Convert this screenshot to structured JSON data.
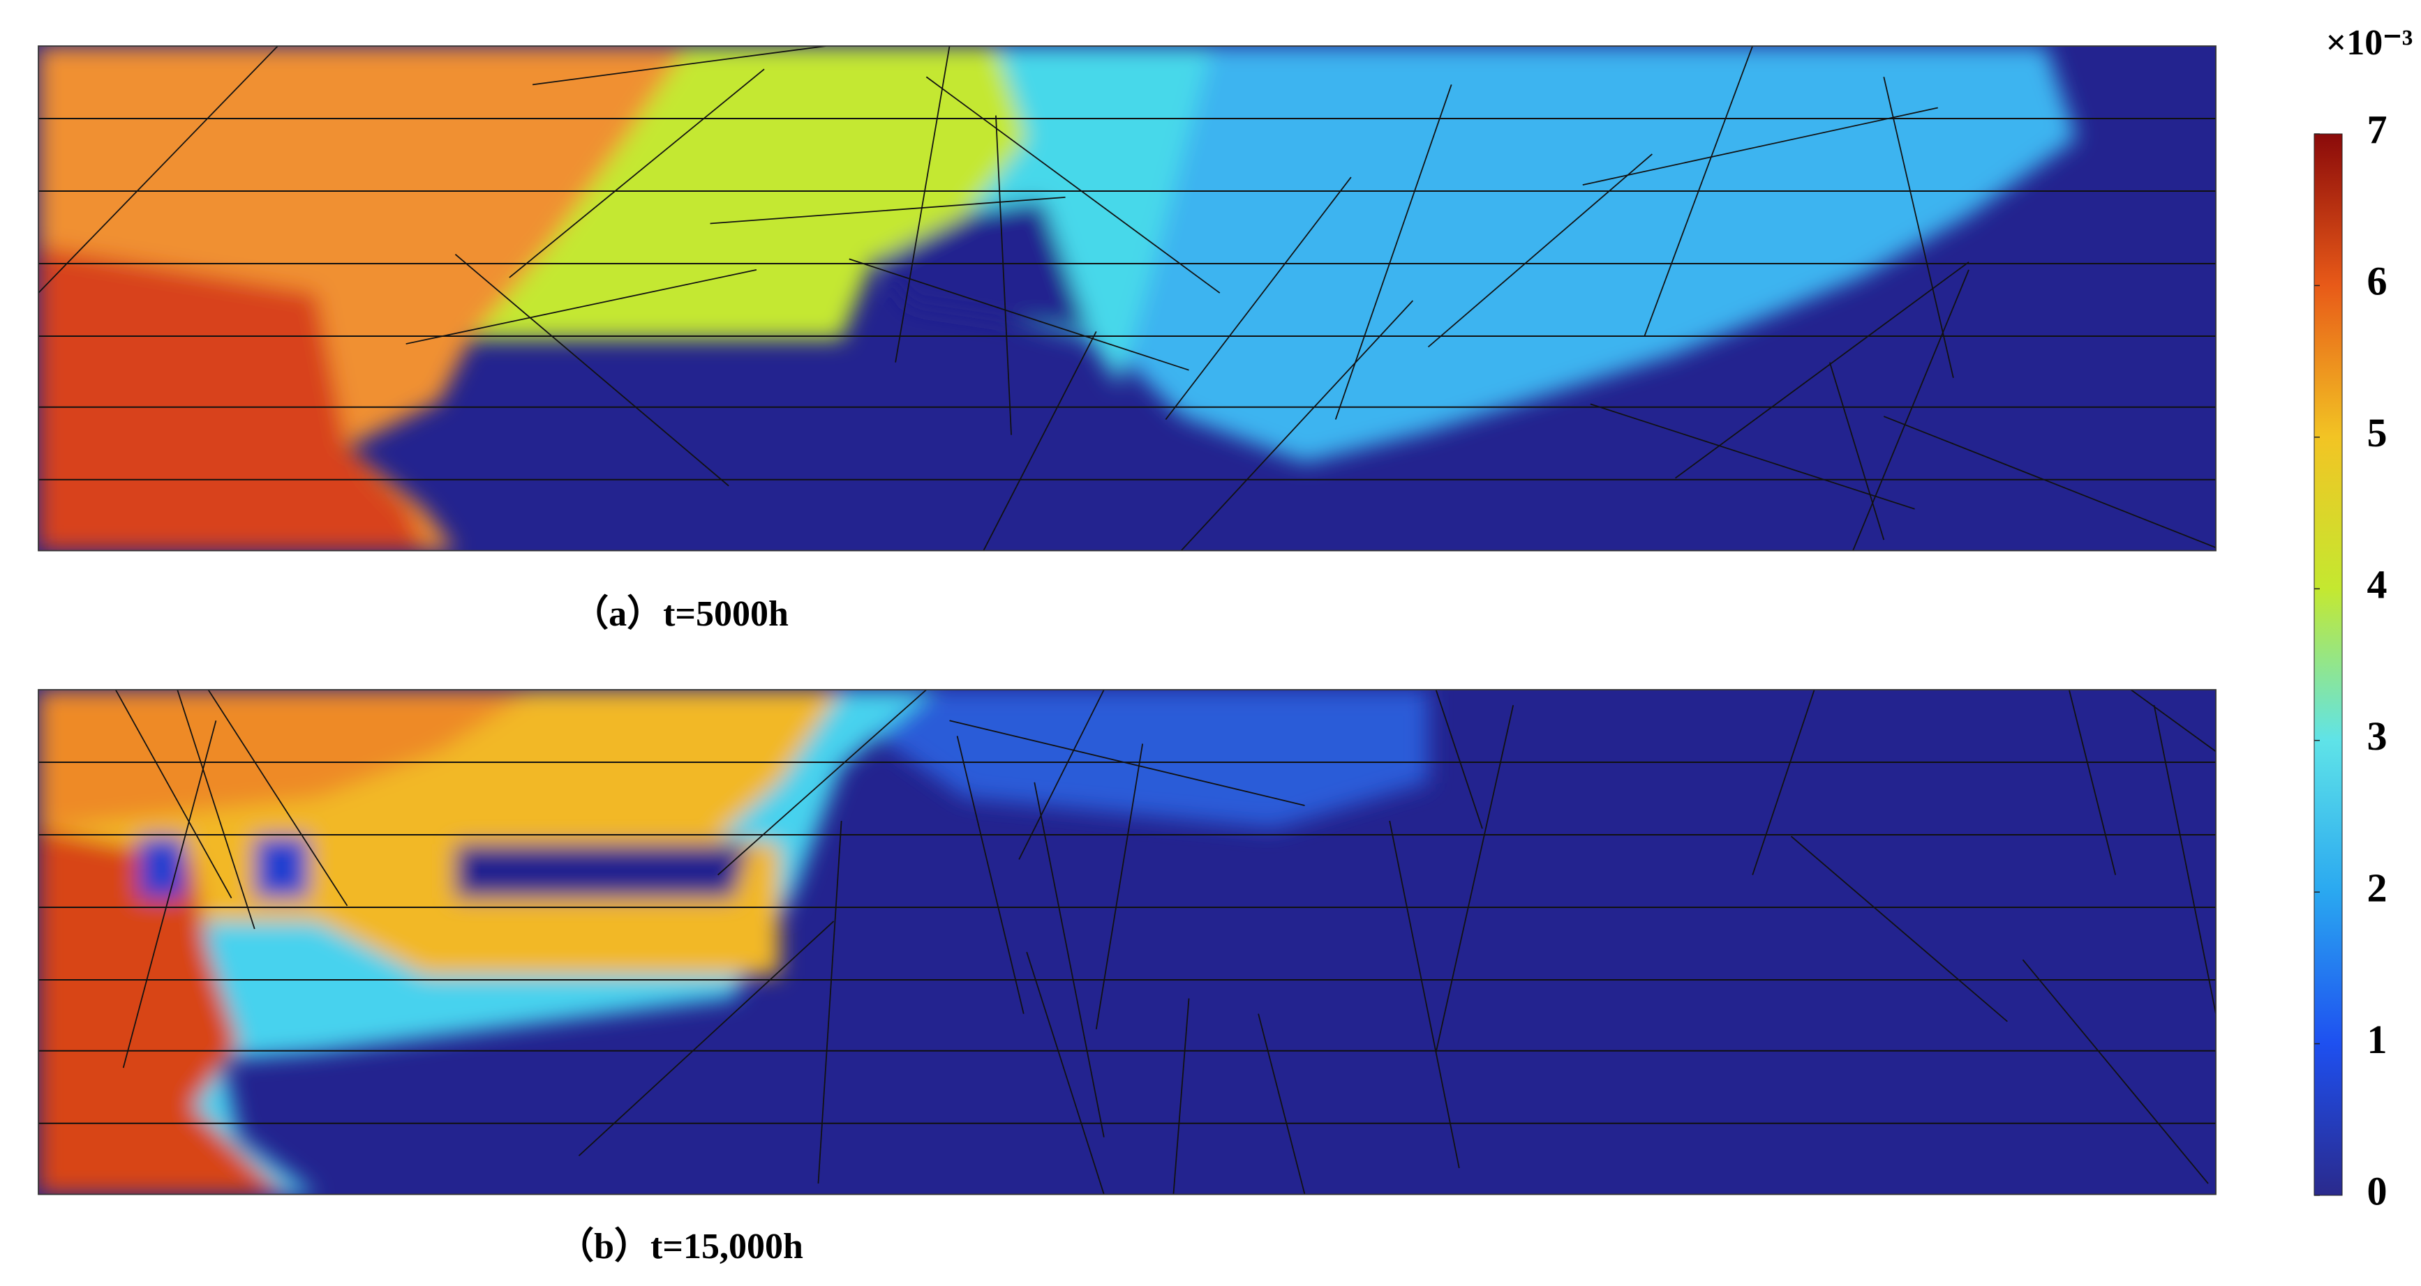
{
  "chart_data": {
    "type": "heatmap",
    "panels": [
      {
        "caption": "（a）t=5000h"
      },
      {
        "caption": "（b）t=15,000h"
      }
    ],
    "colorbar": {
      "label": "×10⁻³",
      "clim": [
        0,
        7
      ],
      "ticks": [
        0,
        1,
        2,
        3,
        4,
        5,
        6,
        7
      ],
      "colormap": [
        "#2a2a8c",
        "#1e50f0",
        "#2aa8f0",
        "#5fe3e8",
        "#c4e830",
        "#f2c424",
        "#e85a18",
        "#8a0a0a"
      ]
    }
  }
}
